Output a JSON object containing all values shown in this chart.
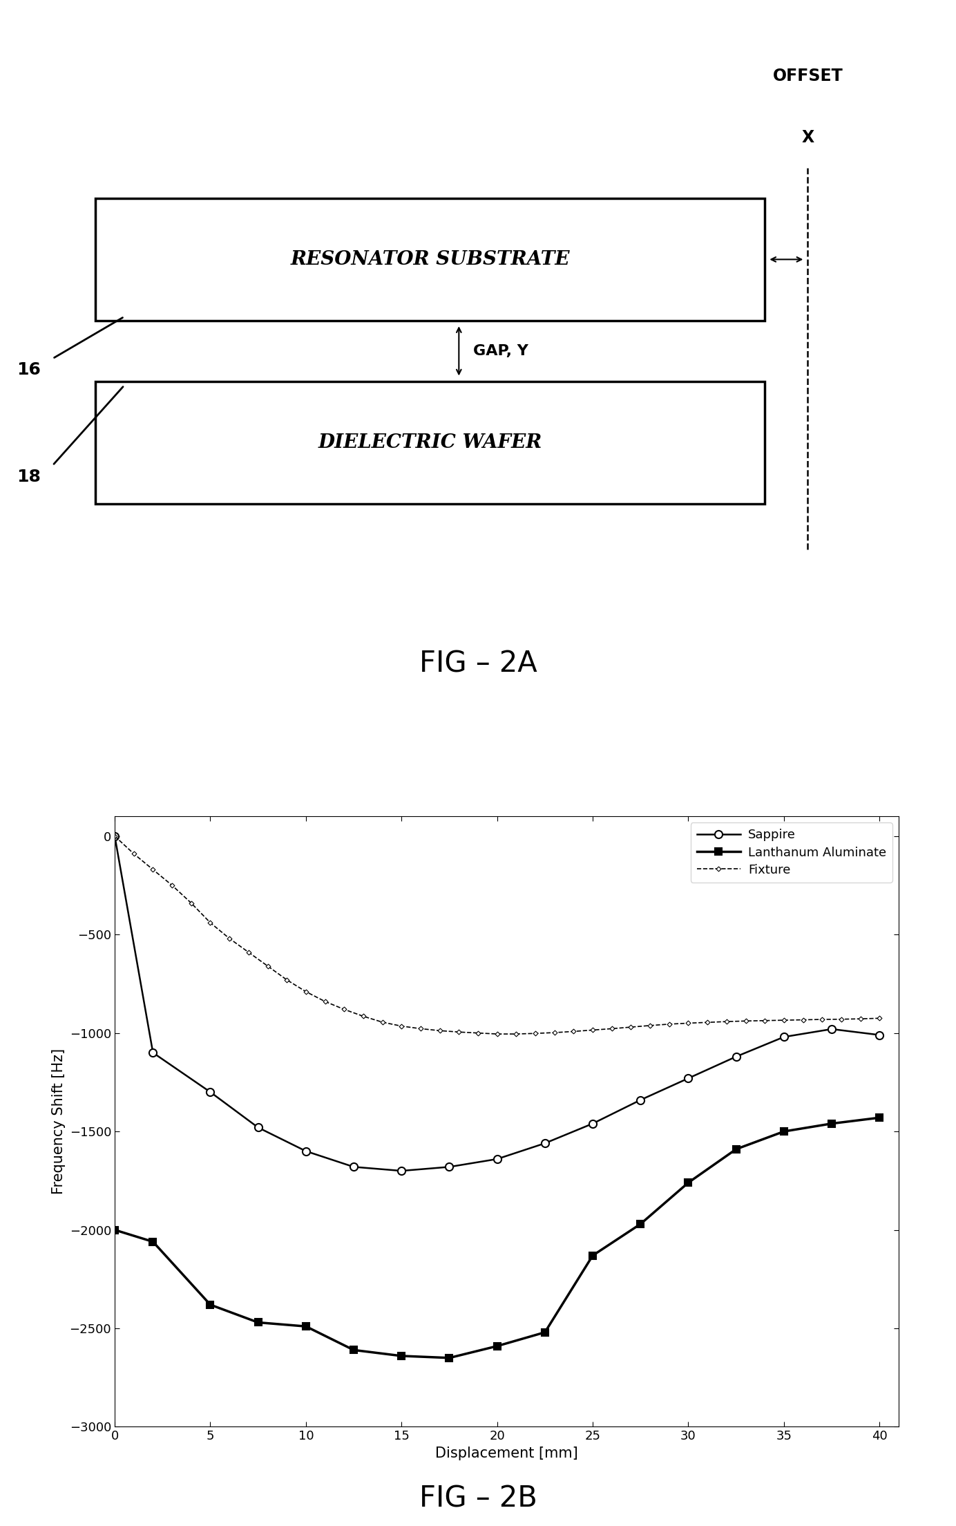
{
  "fig2a": {
    "resonator_label": "RESONATOR SUBSTRATE",
    "wafer_label": "DIELECTRIC WAFER",
    "label_16": "16",
    "label_18": "18",
    "offset_label": "OFFSET",
    "x_label": "X",
    "gap_label": "GAP, Y",
    "fig_label": "FIG – 2A"
  },
  "fig2b": {
    "sapphire_x": [
      0,
      2,
      5,
      7.5,
      10,
      12.5,
      15,
      17.5,
      20,
      22.5,
      25,
      27.5,
      30,
      32.5,
      35,
      37.5,
      40
    ],
    "sapphire_y": [
      0,
      -1100,
      -1300,
      -1480,
      -1600,
      -1680,
      -1700,
      -1680,
      -1640,
      -1560,
      -1460,
      -1340,
      -1230,
      -1120,
      -1020,
      -980,
      -1010
    ],
    "lanthanum_x": [
      0,
      2,
      5,
      7.5,
      10,
      12.5,
      15,
      17.5,
      20,
      22.5,
      25,
      27.5,
      30,
      32.5,
      35,
      37.5,
      40
    ],
    "lanthanum_y": [
      -2000,
      -2060,
      -2380,
      -2470,
      -2490,
      -2610,
      -2640,
      -2650,
      -2590,
      -2520,
      -2130,
      -1970,
      -1760,
      -1590,
      -1500,
      -1460,
      -1430
    ],
    "fixture_x": [
      0,
      1,
      2,
      3,
      4,
      5,
      6,
      7,
      8,
      9,
      10,
      11,
      12,
      13,
      14,
      15,
      16,
      17,
      18,
      19,
      20,
      21,
      22,
      23,
      24,
      25,
      26,
      27,
      28,
      29,
      30,
      31,
      32,
      33,
      34,
      35,
      36,
      37,
      38,
      39,
      40
    ],
    "fixture_y": [
      0,
      -90,
      -170,
      -250,
      -340,
      -440,
      -520,
      -590,
      -660,
      -730,
      -790,
      -840,
      -880,
      -915,
      -945,
      -965,
      -978,
      -988,
      -995,
      -1000,
      -1005,
      -1005,
      -1002,
      -998,
      -992,
      -985,
      -978,
      -970,
      -962,
      -955,
      -950,
      -946,
      -942,
      -939,
      -937,
      -935,
      -933,
      -931,
      -930,
      -928,
      -925
    ],
    "xlabel": "Displacement [mm]",
    "ylabel": "Frequency Shift [Hz]",
    "ylim": [
      -3000,
      100
    ],
    "xlim": [
      0,
      41
    ],
    "yticks": [
      0,
      -500,
      -1000,
      -1500,
      -2000,
      -2500,
      -3000
    ],
    "xticks": [
      0,
      5,
      10,
      15,
      20,
      25,
      30,
      35,
      40
    ],
    "legend_sapphire": "Sappire",
    "legend_lanthanum": "Lanthanum Aluminate",
    "legend_fixture": "Fixture",
    "fig_label": "FIG – 2B"
  }
}
